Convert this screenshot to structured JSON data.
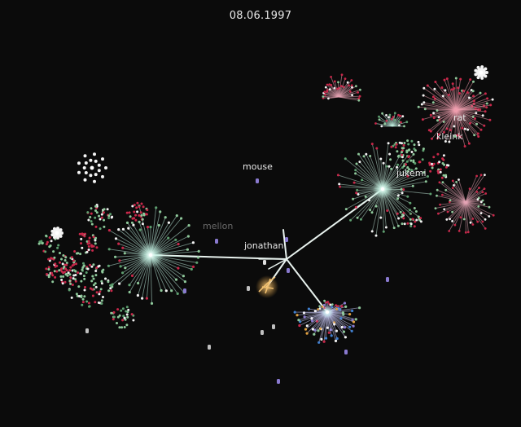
{
  "date": "08.06.1997",
  "labels": {
    "mouse": "mouse",
    "mellon": "mellon",
    "jonathan": "jonathan",
    "rat": "rat",
    "kleink": "kleink",
    "jukemi": "jukemi"
  },
  "colors": {
    "background": "#0b0b0b",
    "edge": "#e8f2ee",
    "label": "#e8e8e8",
    "label_dim": "#6a6a6a",
    "node_red": "#c8284a",
    "node_green": "#8ec89a",
    "node_white": "#f2f2f2",
    "node_orange": "#e0a040",
    "node_purple": "#8a7ad0",
    "hub_glow": "#c8f5e6"
  }
}
